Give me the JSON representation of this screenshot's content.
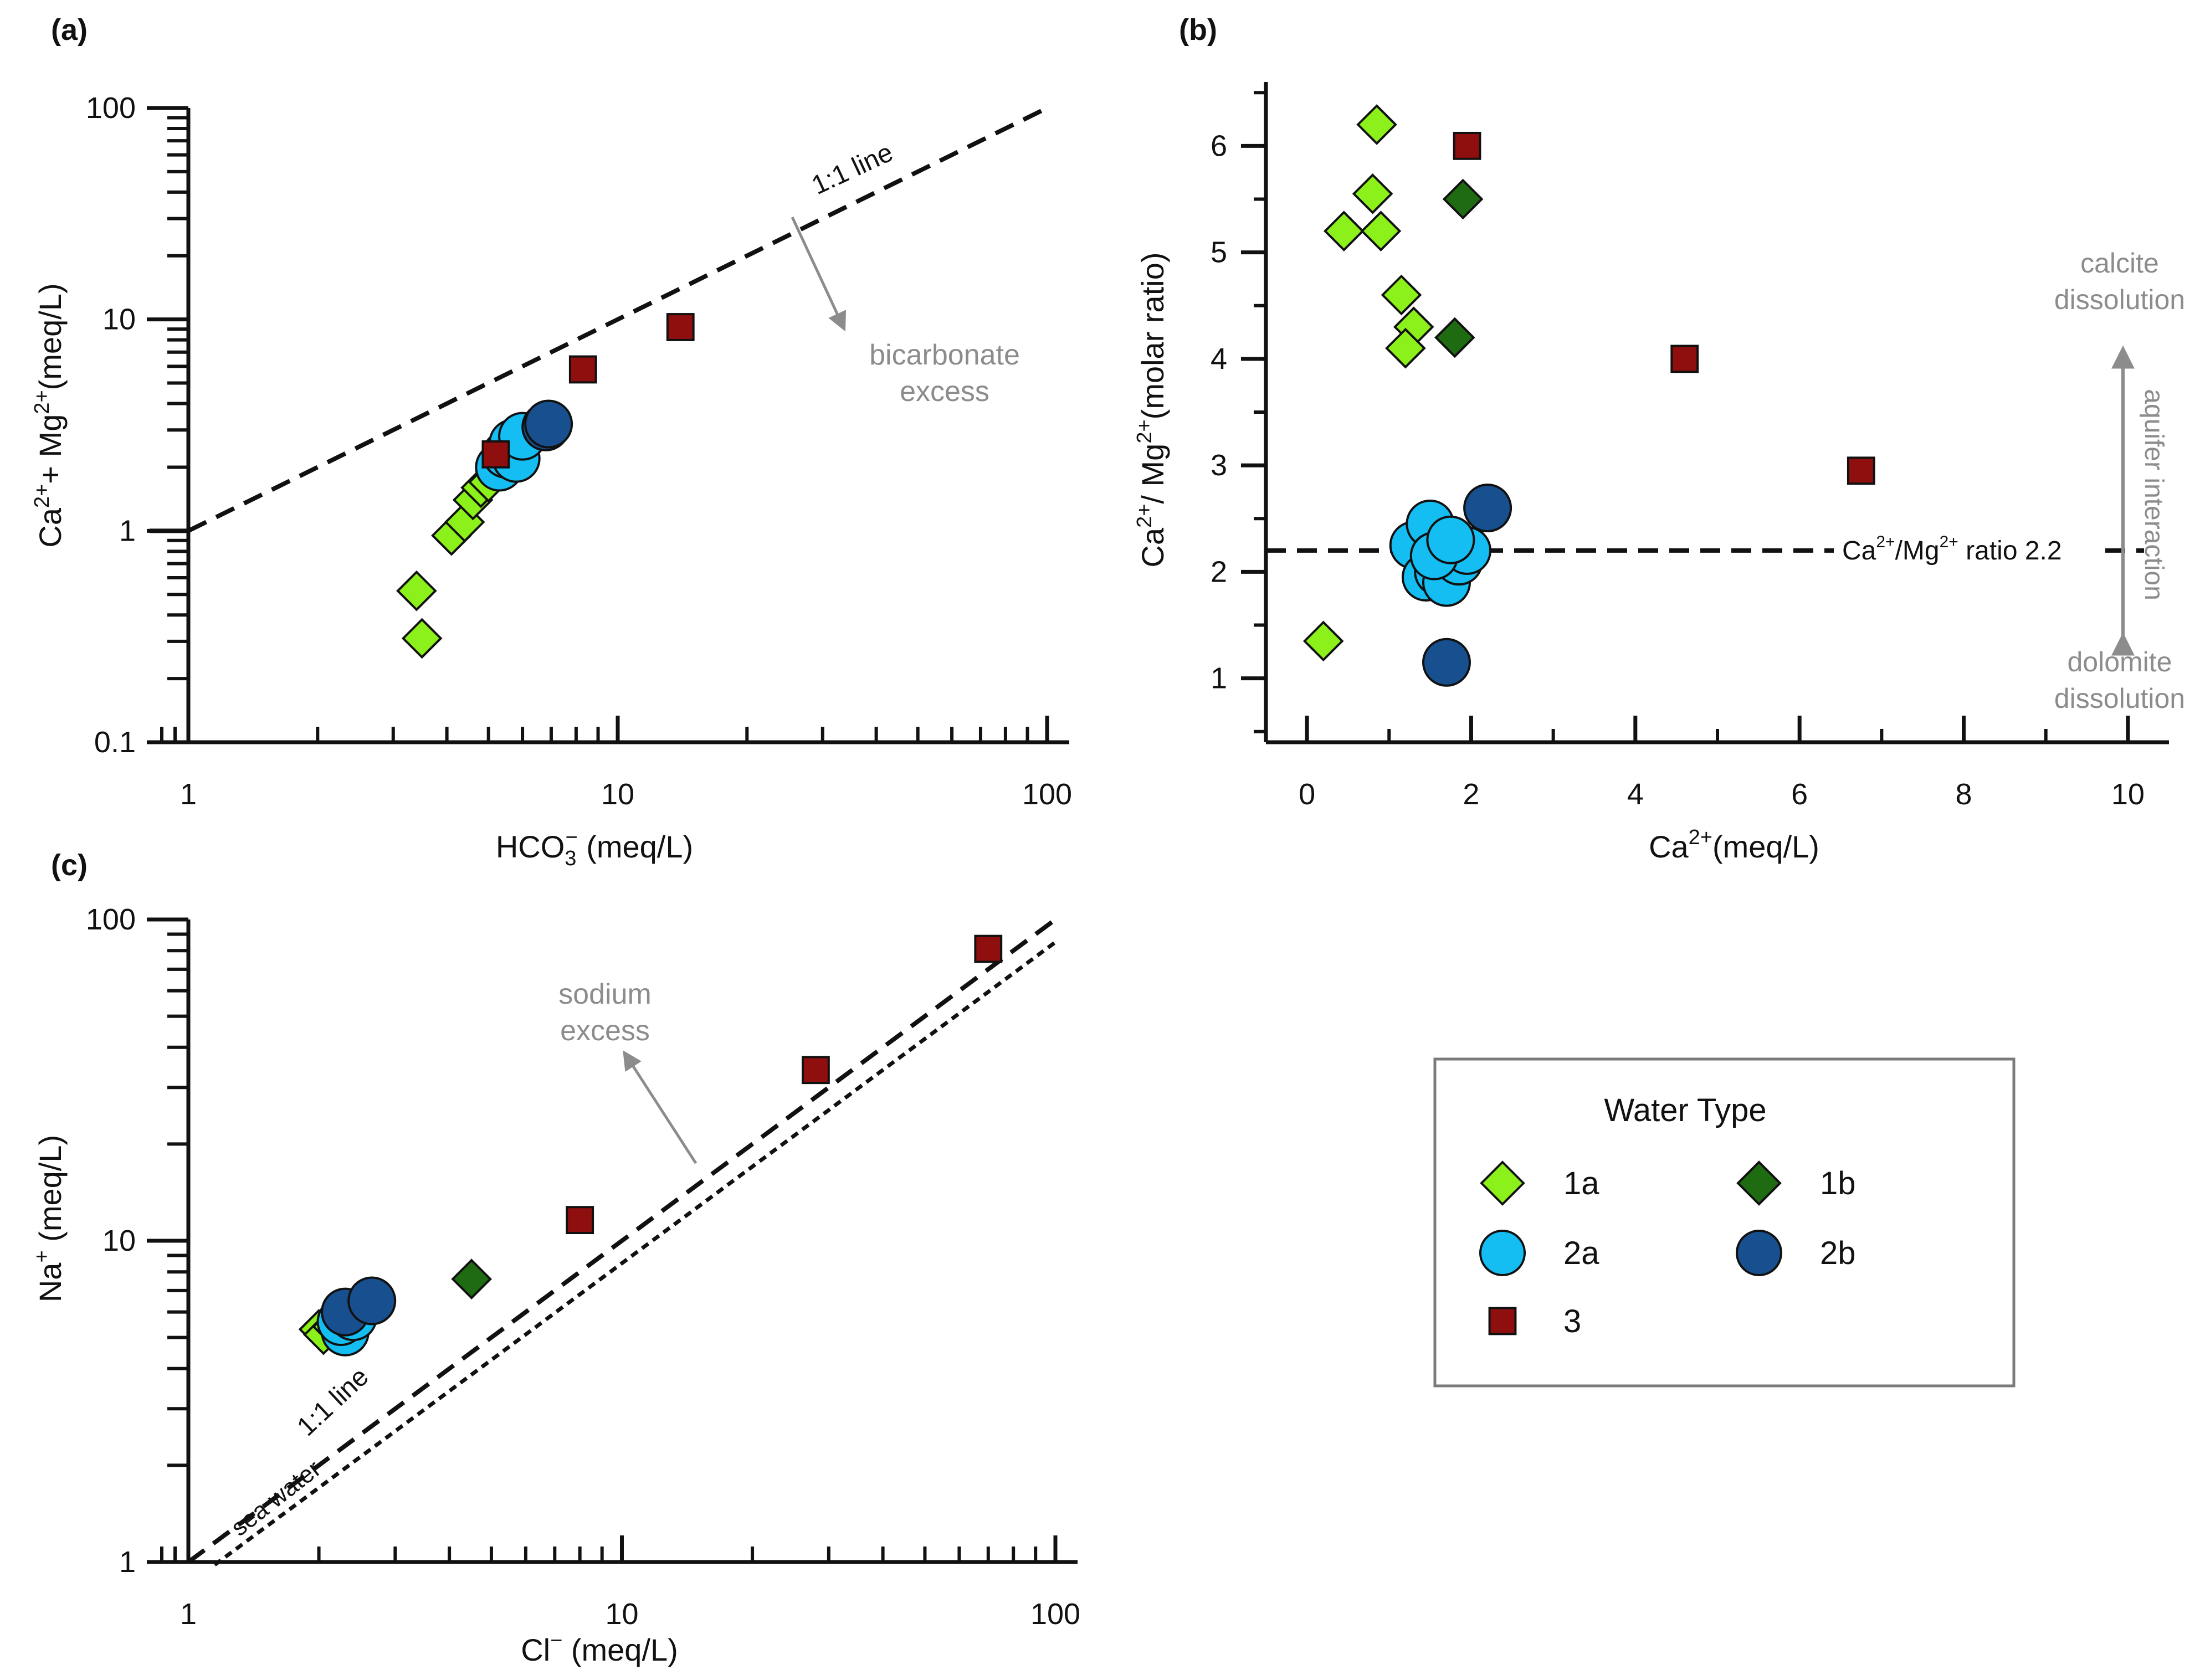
{
  "figure": {
    "colors": {
      "axis": "#111111",
      "annotation": "#8c8c8c",
      "legend_border": "#7a7a7a",
      "1a": "#8cf01a",
      "1b": "#1e6b12",
      "2a": "#14bdf2",
      "2b": "#184f8e",
      "3": "#8f0f0f"
    },
    "legend": {
      "title": "Water Type",
      "items": [
        {
          "key": "1a",
          "label": "1a",
          "marker": "diamond"
        },
        {
          "key": "1b",
          "label": "1b",
          "marker": "diamond"
        },
        {
          "key": "2a",
          "label": "2a",
          "marker": "circle"
        },
        {
          "key": "2b",
          "label": "2b",
          "marker": "circle"
        },
        {
          "key": "3",
          "label": "3",
          "marker": "square"
        }
      ]
    }
  },
  "chart_data": [
    {
      "id": "a",
      "panel_label": "(a)",
      "type": "scatter",
      "x_scale": "log",
      "y_scale": "log",
      "xlim": [
        1,
        100
      ],
      "ylim": [
        0.1,
        100
      ],
      "xticks": [
        1,
        10,
        100
      ],
      "yticks": [
        0.1,
        1,
        10,
        100
      ],
      "xtick_labels": [
        "1",
        "10",
        "100"
      ],
      "ytick_labels": [
        "0.1",
        "1",
        "10",
        "100"
      ],
      "xlabel": {
        "main": "HCO",
        "sub": "3",
        "sup": "−",
        "unit": " (meq/L)"
      },
      "ylabel": {
        "parts": [
          [
            "Ca",
            ""
          ],
          [
            "2+",
            "sup"
          ],
          [
            "+ Mg",
            ""
          ],
          [
            "2+",
            "sup"
          ],
          [
            "(meq/L)",
            ""
          ]
        ]
      },
      "reference_lines": [
        {
          "name": "1:1 line",
          "style": "dashed",
          "points": [
            [
              1,
              1
            ],
            [
              100,
              100
            ]
          ],
          "label": "1:1 line"
        }
      ],
      "annotations": [
        {
          "text_lines": [
            "bicarbonate",
            "excess"
          ],
          "arrow_from": [
            30,
            28
          ],
          "arrow_to": [
            38,
            11
          ]
        }
      ],
      "series": [
        {
          "name": "1a",
          "points": [
            [
              3.4,
              0.52
            ],
            [
              3.5,
              0.31
            ],
            [
              4.1,
              0.95
            ],
            [
              4.4,
              1.1
            ],
            [
              4.6,
              1.4
            ],
            [
              4.8,
              1.6
            ],
            [
              5.0,
              1.7
            ]
          ]
        },
        {
          "name": "2a",
          "points": [
            [
              5.3,
              2.0
            ],
            [
              5.5,
              2.3
            ],
            [
              5.7,
              2.6
            ],
            [
              5.8,
              2.2
            ],
            [
              6.0,
              2.8
            ]
          ]
        },
        {
          "name": "2b",
          "points": [
            [
              6.8,
              3.1
            ],
            [
              6.9,
              3.2
            ]
          ]
        },
        {
          "name": "3",
          "points": [
            [
              5.2,
              2.3
            ],
            [
              8.3,
              5.8
            ],
            [
              14,
              9.2
            ]
          ]
        }
      ]
    },
    {
      "id": "b",
      "panel_label": "(b)",
      "type": "scatter",
      "x_scale": "linear",
      "y_scale": "linear",
      "xlim": [
        -0.5,
        10.5
      ],
      "ylim": [
        0.4,
        6.6
      ],
      "xticks": [
        0,
        2,
        4,
        6,
        8,
        10
      ],
      "yticks": [
        1,
        2,
        3,
        4,
        5,
        6
      ],
      "xtick_labels": [
        "0",
        "2",
        "4",
        "6",
        "8",
        "10"
      ],
      "ytick_labels": [
        "1",
        "2",
        "3",
        "4",
        "5",
        "6"
      ],
      "xlabel": {
        "main": "Ca",
        "sup": "2+",
        "unit": "(meq/L)"
      },
      "ylabel": {
        "parts": [
          [
            "Ca",
            ""
          ],
          [
            "2+",
            "sup"
          ],
          [
            "/ Mg",
            ""
          ],
          [
            "2+",
            "sup"
          ],
          [
            "(molar ratio)",
            ""
          ]
        ]
      },
      "reference_lines": [
        {
          "name": "Ca2+/Mg2+ ratio 2.2",
          "style": "dashed",
          "y": 2.2,
          "label_parts": [
            [
              "Ca",
              ""
            ],
            [
              "2+",
              "sup"
            ],
            [
              "/Mg",
              ""
            ],
            [
              "2+",
              "sup"
            ],
            [
              " ratio 2.2",
              ""
            ]
          ]
        }
      ],
      "annotations": [
        {
          "text_lines": [
            "calcite",
            "dissolution"
          ],
          "position": "top-right"
        },
        {
          "text_lines": [
            "dolomite",
            "dissolution"
          ],
          "position": "bottom-right"
        },
        {
          "text": "aquifer interaction",
          "orientation": "vertical"
        }
      ],
      "series": [
        {
          "name": "1a",
          "points": [
            [
              0.2,
              1.35
            ],
            [
              0.45,
              5.2
            ],
            [
              0.8,
              5.55
            ],
            [
              0.85,
              6.2
            ],
            [
              0.9,
              5.2
            ],
            [
              1.15,
              4.6
            ],
            [
              1.3,
              4.3
            ],
            [
              1.2,
              4.1
            ]
          ]
        },
        {
          "name": "1b",
          "points": [
            [
              1.8,
              4.2
            ],
            [
              1.9,
              5.5
            ]
          ]
        },
        {
          "name": "2a",
          "points": [
            [
              1.3,
              2.25
            ],
            [
              1.45,
              1.95
            ],
            [
              1.5,
              2.45
            ],
            [
              1.6,
              2.0
            ],
            [
              1.7,
              1.9
            ],
            [
              1.85,
              2.1
            ],
            [
              1.95,
              2.2
            ],
            [
              1.55,
              2.15
            ],
            [
              1.75,
              2.3
            ]
          ]
        },
        {
          "name": "2b",
          "points": [
            [
              1.7,
              1.15
            ],
            [
              2.2,
              2.6
            ]
          ]
        },
        {
          "name": "3",
          "points": [
            [
              1.95,
              6.0
            ],
            [
              4.6,
              4.0
            ],
            [
              6.75,
              2.95
            ]
          ]
        }
      ]
    },
    {
      "id": "c",
      "panel_label": "(c)",
      "type": "scatter",
      "x_scale": "log",
      "y_scale": "log",
      "xlim": [
        1,
        100
      ],
      "ylim": [
        1,
        100
      ],
      "xticks": [
        1,
        10,
        100
      ],
      "yticks": [
        1,
        10,
        100
      ],
      "xtick_labels": [
        "1",
        "10",
        "100"
      ],
      "ytick_labels": [
        "1",
        "10",
        "100"
      ],
      "xlabel": {
        "main": "Cl",
        "sup": "−",
        "unit": " (meq/L)"
      },
      "ylabel": {
        "parts": [
          [
            "Na",
            ""
          ],
          [
            "+",
            "sup"
          ],
          [
            " (meq/L)",
            ""
          ]
        ]
      },
      "reference_lines": [
        {
          "name": "1:1 line",
          "style": "dashed",
          "points": [
            [
              1,
              1
            ],
            [
              100,
              100
            ]
          ],
          "label": "1:1 line"
        },
        {
          "name": "sea water",
          "style": "dotted",
          "points": [
            [
              1.15,
              0.98
            ],
            [
              100,
              85
            ]
          ],
          "label": "sea water"
        }
      ],
      "annotations": [
        {
          "text_lines": [
            "sodium",
            "excess"
          ],
          "arrow_from": [
            16,
            16
          ],
          "arrow_to": [
            10.2,
            30
          ]
        }
      ],
      "series": [
        {
          "name": "1a",
          "points": [
            [
              2.0,
              5.3
            ],
            [
              2.05,
              5.1
            ],
            [
              2.15,
              5.4
            ]
          ]
        },
        {
          "name": "1b",
          "points": [
            [
              4.5,
              7.6
            ]
          ]
        },
        {
          "name": "2a",
          "points": [
            [
              2.3,
              5.2
            ],
            [
              2.25,
              5.6
            ],
            [
              2.4,
              5.8
            ]
          ]
        },
        {
          "name": "2b",
          "points": [
            [
              2.3,
              6.0
            ],
            [
              2.65,
              6.5
            ]
          ]
        },
        {
          "name": "3",
          "points": [
            [
              8.0,
              11.6
            ],
            [
              28,
              34
            ],
            [
              70,
              81
            ]
          ]
        }
      ]
    }
  ]
}
